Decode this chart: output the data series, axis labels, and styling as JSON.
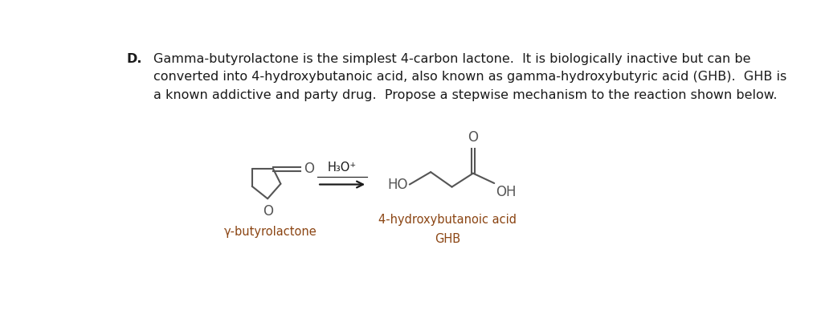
{
  "background_color": "#ffffff",
  "text_color": "#1a1a1a",
  "structure_color": "#555555",
  "label_color": "#8B4513",
  "title_letter": "D.",
  "line1": "Gamma-butyrolactone is the simplest 4-carbon lactone.  It is biologically inactive but can be",
  "line2": "converted into 4-hydroxybutanoic acid, also known as gamma-hydroxybutyric acid (GHB).  GHB is",
  "line3": "a known addictive and party drug.  Propose a stepwise mechanism to the reaction shown below.",
  "reagent": "H₃O⁺",
  "left_label": "γ-butyrolactone",
  "right_label1": "4-hydroxybutanoic acid",
  "right_label2": "GHB",
  "figsize": [
    10.22,
    3.92
  ],
  "dpi": 100
}
